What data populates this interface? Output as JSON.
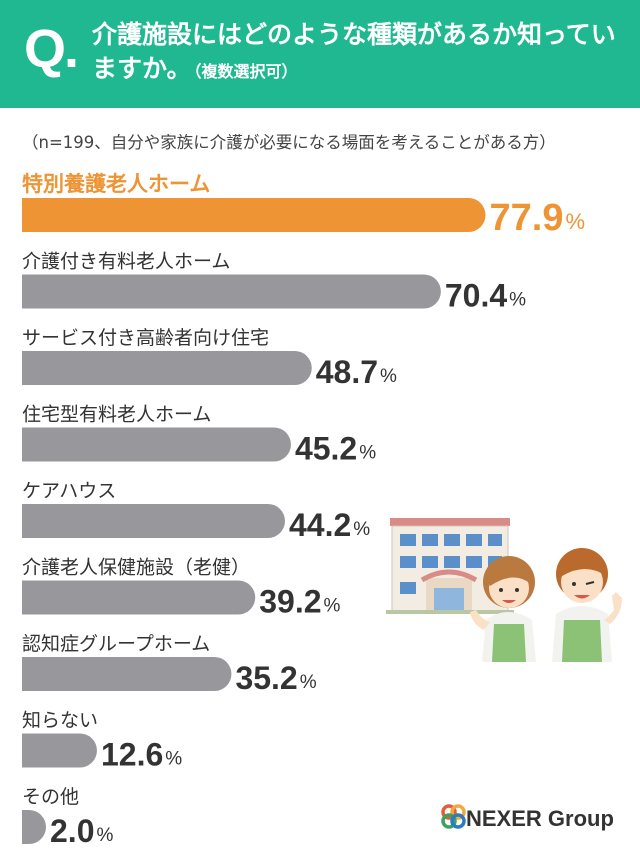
{
  "header": {
    "q_mark": "Q.",
    "question": "介護施設にはどのような種類があるか知っていますか。",
    "question_note": "（複数選択可）",
    "background_color": "#1fb890"
  },
  "sample_note": "（n=199、自分や家族に介護が必要になる場面を考えることがある方）",
  "chart_data": {
    "type": "bar",
    "orientation": "horizontal",
    "categories": [
      "特別養護老人ホーム",
      "介護付き有料老人ホーム",
      "サービス付き高齢者向け住宅",
      "住宅型有料老人ホーム",
      "ケアハウス",
      "介護老人保健施設（老健）",
      "認知症グループホーム",
      "知らない",
      "その他"
    ],
    "values": [
      77.9,
      70.4,
      48.7,
      45.2,
      44.2,
      39.2,
      35.2,
      12.6,
      2.0
    ],
    "value_labels": [
      "77.9",
      "70.4",
      "48.7",
      "45.2",
      "44.2",
      "39.2",
      "35.2",
      "12.6",
      "2.0"
    ],
    "unit": "%",
    "highlight_index": 0,
    "colors": {
      "highlight": "#ee9434",
      "default": "#98989c"
    },
    "xlim": [
      0,
      100
    ]
  },
  "logo": {
    "text": "NEXER Group",
    "colors": [
      "#e85a3c",
      "#f2a93b",
      "#3aa55a",
      "#2d7cc0"
    ]
  }
}
